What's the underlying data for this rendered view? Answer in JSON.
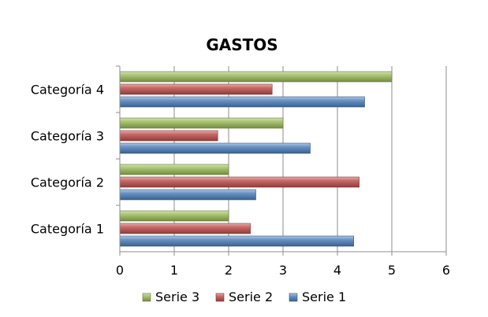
{
  "chart_data": {
    "type": "bar",
    "orientation": "horizontal",
    "title": "GASTOS",
    "xlabel": "",
    "ylabel": "",
    "categories": [
      "Categoría 1",
      "Categoría 2",
      "Categoría 3",
      "Categoría 4"
    ],
    "series": [
      {
        "name": "Serie 1",
        "values": [
          4.3,
          2.5,
          3.5,
          4.5
        ],
        "color": "#4F81BD"
      },
      {
        "name": "Serie 2",
        "values": [
          2.4,
          4.4,
          1.8,
          2.8
        ],
        "color": "#C0504D"
      },
      {
        "name": "Serie 3",
        "values": [
          2.0,
          2.0,
          3.0,
          5.0
        ],
        "color": "#9BBB59"
      }
    ],
    "xlim": [
      0,
      6
    ],
    "xticks": [
      "0",
      "1",
      "2",
      "3",
      "4",
      "5",
      "6"
    ],
    "grid": "vertical-major",
    "legend": {
      "position": "bottom",
      "order": [
        "Serie 3",
        "Serie 2",
        "Serie 1"
      ]
    }
  }
}
